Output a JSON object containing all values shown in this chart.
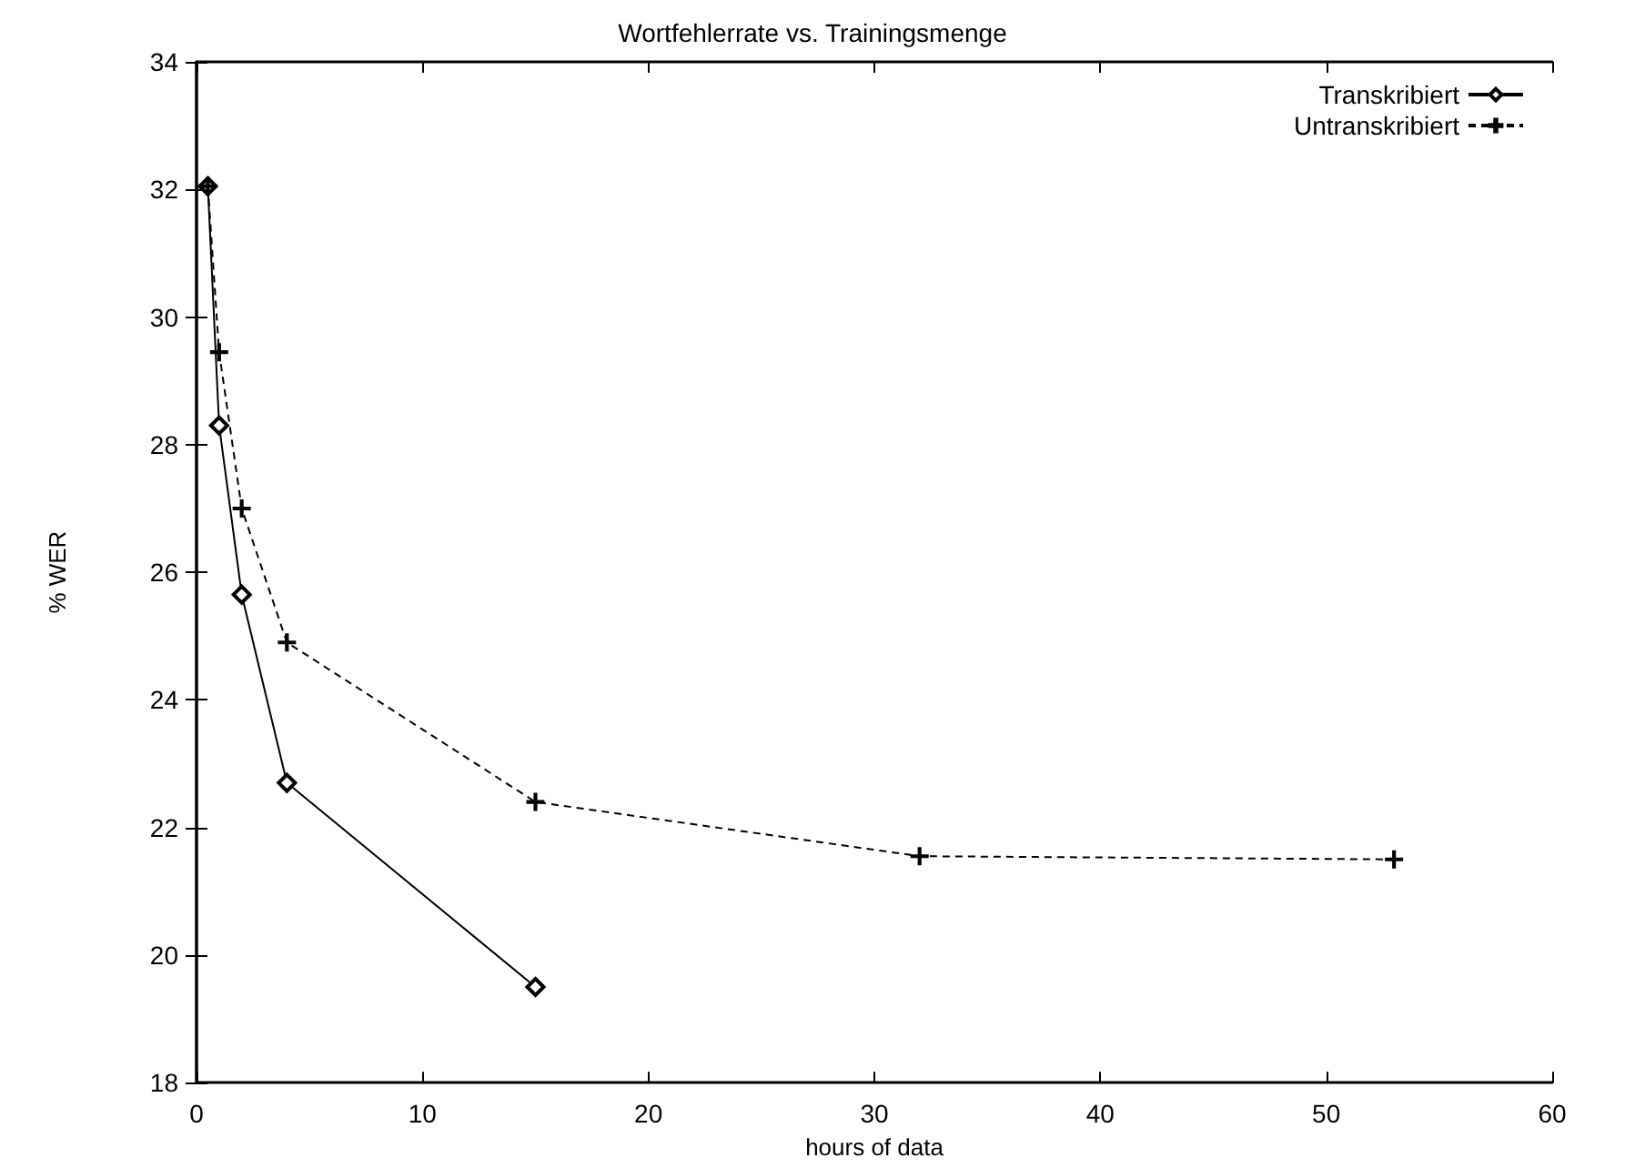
{
  "chart_data": {
    "type": "line",
    "title": "Wortfehlerrate vs. Trainingsmenge",
    "xlabel": "hours of data",
    "ylabel": "% WER",
    "xlim": [
      0,
      60
    ],
    "xticks": [
      0,
      10,
      20,
      30,
      40,
      50,
      60
    ],
    "ylim": [
      18,
      34
    ],
    "yticks": [
      18,
      20,
      22,
      24,
      26,
      28,
      30,
      32,
      34
    ],
    "grid": false,
    "legend": "top right",
    "series": [
      {
        "name": "Transkribiert",
        "color": "#000000",
        "marker": "diamond",
        "line_style": "solid",
        "x": [
          0.5,
          1,
          2,
          4,
          15
        ],
        "values": [
          32.05,
          28.3,
          25.65,
          22.7,
          19.5
        ]
      },
      {
        "name": "Untranskribiert",
        "color": "#000000",
        "marker": "cross",
        "line_style": "dashed",
        "x": [
          0.5,
          1,
          2,
          4,
          15,
          32,
          53
        ],
        "values": [
          32.05,
          29.45,
          27.0,
          24.9,
          22.4,
          21.55,
          21.5
        ]
      }
    ]
  }
}
